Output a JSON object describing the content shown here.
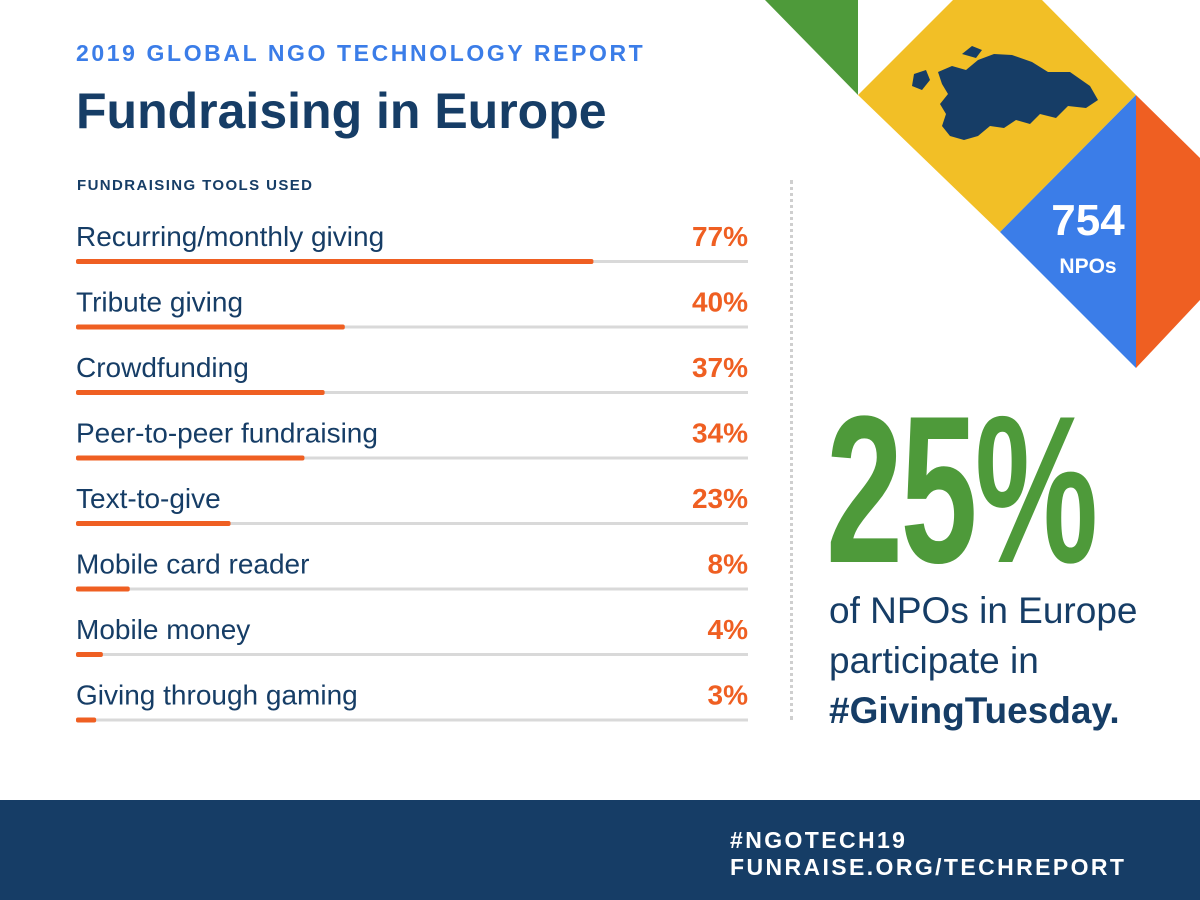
{
  "header": {
    "supertitle": "2019 GLOBAL NGO TECHNOLOGY REPORT",
    "title": "Fundraising in Europe"
  },
  "chart_data": {
    "type": "bar",
    "title": "FUNDRAISING TOOLS USED",
    "categories": [
      "Recurring/monthly giving",
      "Tribute giving",
      "Crowdfunding",
      "Peer-to-peer fundraising",
      "Text-to-give",
      "Mobile card reader",
      "Mobile money",
      "Giving through gaming"
    ],
    "values": [
      77,
      40,
      37,
      34,
      23,
      8,
      4,
      3
    ],
    "value_labels": [
      "77%",
      "40%",
      "37%",
      "34%",
      "23%",
      "8%",
      "4%",
      "3%"
    ],
    "ylim": [
      0,
      100
    ],
    "orientation": "horizontal",
    "colors": {
      "bar": "#ef5f22",
      "track": "#d9d9d9",
      "label": "#163d66"
    }
  },
  "badge": {
    "count": "754",
    "label": "NPOs",
    "icon": "europe-map-icon"
  },
  "stat": {
    "value": "25%",
    "line1": "of NPOs in Europe",
    "line2": "participate in",
    "hashtag": "#GivingTuesday."
  },
  "footer": {
    "hashtag": "#NGOTECH19",
    "url": "FUNRAISE.ORG/TECHREPORT"
  },
  "colors": {
    "navy": "#163d66",
    "blue": "#3b7de8",
    "orange": "#ef5f22",
    "green": "#4e9a3a",
    "yellow": "#f2bf26"
  }
}
